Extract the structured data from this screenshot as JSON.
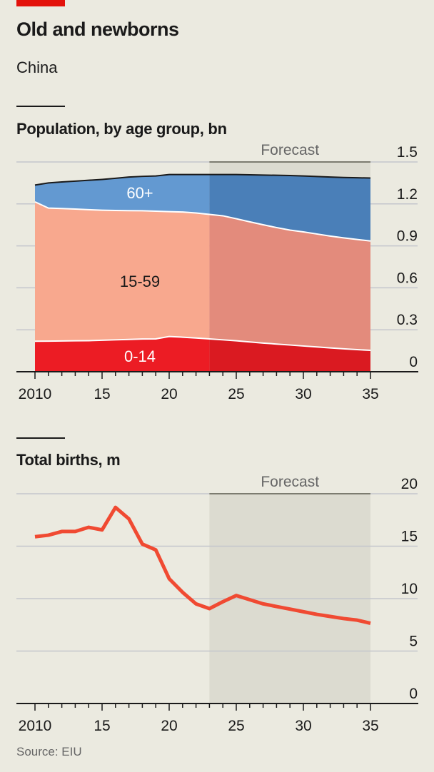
{
  "header": {
    "title": "Old and newborns",
    "subtitle": "China"
  },
  "source": "Source: EIU",
  "colors": {
    "background": "#ebeae0",
    "brand_red": "#e3120b",
    "age_60_plus": "#6399d1",
    "age_60_plus_forecast": "#4a7fb8",
    "age_15_59": "#f8a88e",
    "age_15_59_forecast": "#e38b7c",
    "age_0_14": "#ec1c24",
    "age_0_14_forecast": "#da1a21",
    "births_line": "#f04a32",
    "forecast_shade": "#dcdbd0",
    "gridline": "#c4c6cc"
  },
  "chart_data": [
    {
      "type": "area",
      "title": "Population, by age group, bn",
      "stacked": true,
      "x": [
        2010,
        2011,
        2012,
        2013,
        2014,
        2015,
        2016,
        2017,
        2018,
        2019,
        2020,
        2021,
        2022,
        2023,
        2024,
        2025,
        2026,
        2027,
        2028,
        2029,
        2030,
        2031,
        2032,
        2033,
        2034,
        2035
      ],
      "series": [
        {
          "name": "0-14",
          "values": [
            0.218,
            0.219,
            0.22,
            0.221,
            0.222,
            0.225,
            0.228,
            0.231,
            0.234,
            0.235,
            0.252,
            0.247,
            0.241,
            0.235,
            0.228,
            0.221,
            0.213,
            0.205,
            0.198,
            0.191,
            0.184,
            0.177,
            0.17,
            0.164,
            0.158,
            0.153
          ]
        },
        {
          "name": "15-59",
          "values": [
            0.997,
            0.951,
            0.947,
            0.942,
            0.937,
            0.93,
            0.925,
            0.921,
            0.917,
            0.913,
            0.893,
            0.895,
            0.894,
            0.89,
            0.887,
            0.873,
            0.859,
            0.846,
            0.833,
            0.822,
            0.816,
            0.808,
            0.8,
            0.793,
            0.788,
            0.782
          ]
        },
        {
          "name": "60+",
          "values": [
            0.12,
            0.18,
            0.19,
            0.2,
            0.21,
            0.22,
            0.23,
            0.24,
            0.246,
            0.252,
            0.265,
            0.268,
            0.275,
            0.285,
            0.295,
            0.316,
            0.336,
            0.355,
            0.374,
            0.39,
            0.4,
            0.411,
            0.422,
            0.432,
            0.441,
            0.45
          ]
        }
      ],
      "totals": [
        1.335,
        1.35,
        1.357,
        1.363,
        1.369,
        1.375,
        1.383,
        1.392,
        1.397,
        1.4,
        1.41,
        1.41,
        1.41,
        1.41,
        1.41,
        1.41,
        1.408,
        1.406,
        1.405,
        1.403,
        1.4,
        1.396,
        1.392,
        1.389,
        1.387,
        1.385
      ],
      "series_labels": [
        "60+",
        "15-59",
        "0-14"
      ],
      "forecast_start": 2023,
      "forecast_end": 2035,
      "forecast_label": "Forecast",
      "xlabel": "",
      "ylabel": "",
      "x_ticks": [
        2010,
        2015,
        2020,
        2025,
        2030,
        2035
      ],
      "x_tick_labels": [
        "2010",
        "15",
        "20",
        "25",
        "30",
        "35"
      ],
      "y_ticks": [
        0,
        0.3,
        0.6,
        0.9,
        1.2,
        1.5
      ],
      "y_tick_labels": [
        "0",
        "0.3",
        "0.6",
        "0.9",
        "1.2",
        "1.5"
      ],
      "xlim": [
        2010,
        2035
      ],
      "ylim": [
        0,
        1.5
      ],
      "grid": true,
      "y_axis_side": "right"
    },
    {
      "type": "line",
      "title": "Total births, m",
      "x": [
        2010,
        2011,
        2012,
        2013,
        2014,
        2015,
        2016,
        2017,
        2018,
        2019,
        2020,
        2021,
        2022,
        2023,
        2024,
        2025,
        2026,
        2027,
        2028,
        2029,
        2030,
        2031,
        2032,
        2033,
        2034,
        2035
      ],
      "series": [
        {
          "name": "Total births",
          "values": [
            15.9,
            16.05,
            16.4,
            16.4,
            16.8,
            16.55,
            18.7,
            17.6,
            15.2,
            14.65,
            11.9,
            10.6,
            9.5,
            9.05,
            9.7,
            10.3,
            9.9,
            9.5,
            9.25,
            9.0,
            8.75,
            8.5,
            8.3,
            8.1,
            7.95,
            7.65
          ]
        }
      ],
      "forecast_start": 2023,
      "forecast_end": 2035,
      "forecast_label": "Forecast",
      "xlabel": "",
      "ylabel": "",
      "x_ticks": [
        2010,
        2015,
        2020,
        2025,
        2030,
        2035
      ],
      "x_tick_labels": [
        "2010",
        "15",
        "20",
        "25",
        "30",
        "35"
      ],
      "y_ticks": [
        0,
        5,
        10,
        15,
        20
      ],
      "y_tick_labels": [
        "0",
        "5",
        "10",
        "15",
        "20"
      ],
      "xlim": [
        2010,
        2035
      ],
      "ylim": [
        0,
        20
      ],
      "grid": true,
      "y_axis_side": "right"
    }
  ]
}
